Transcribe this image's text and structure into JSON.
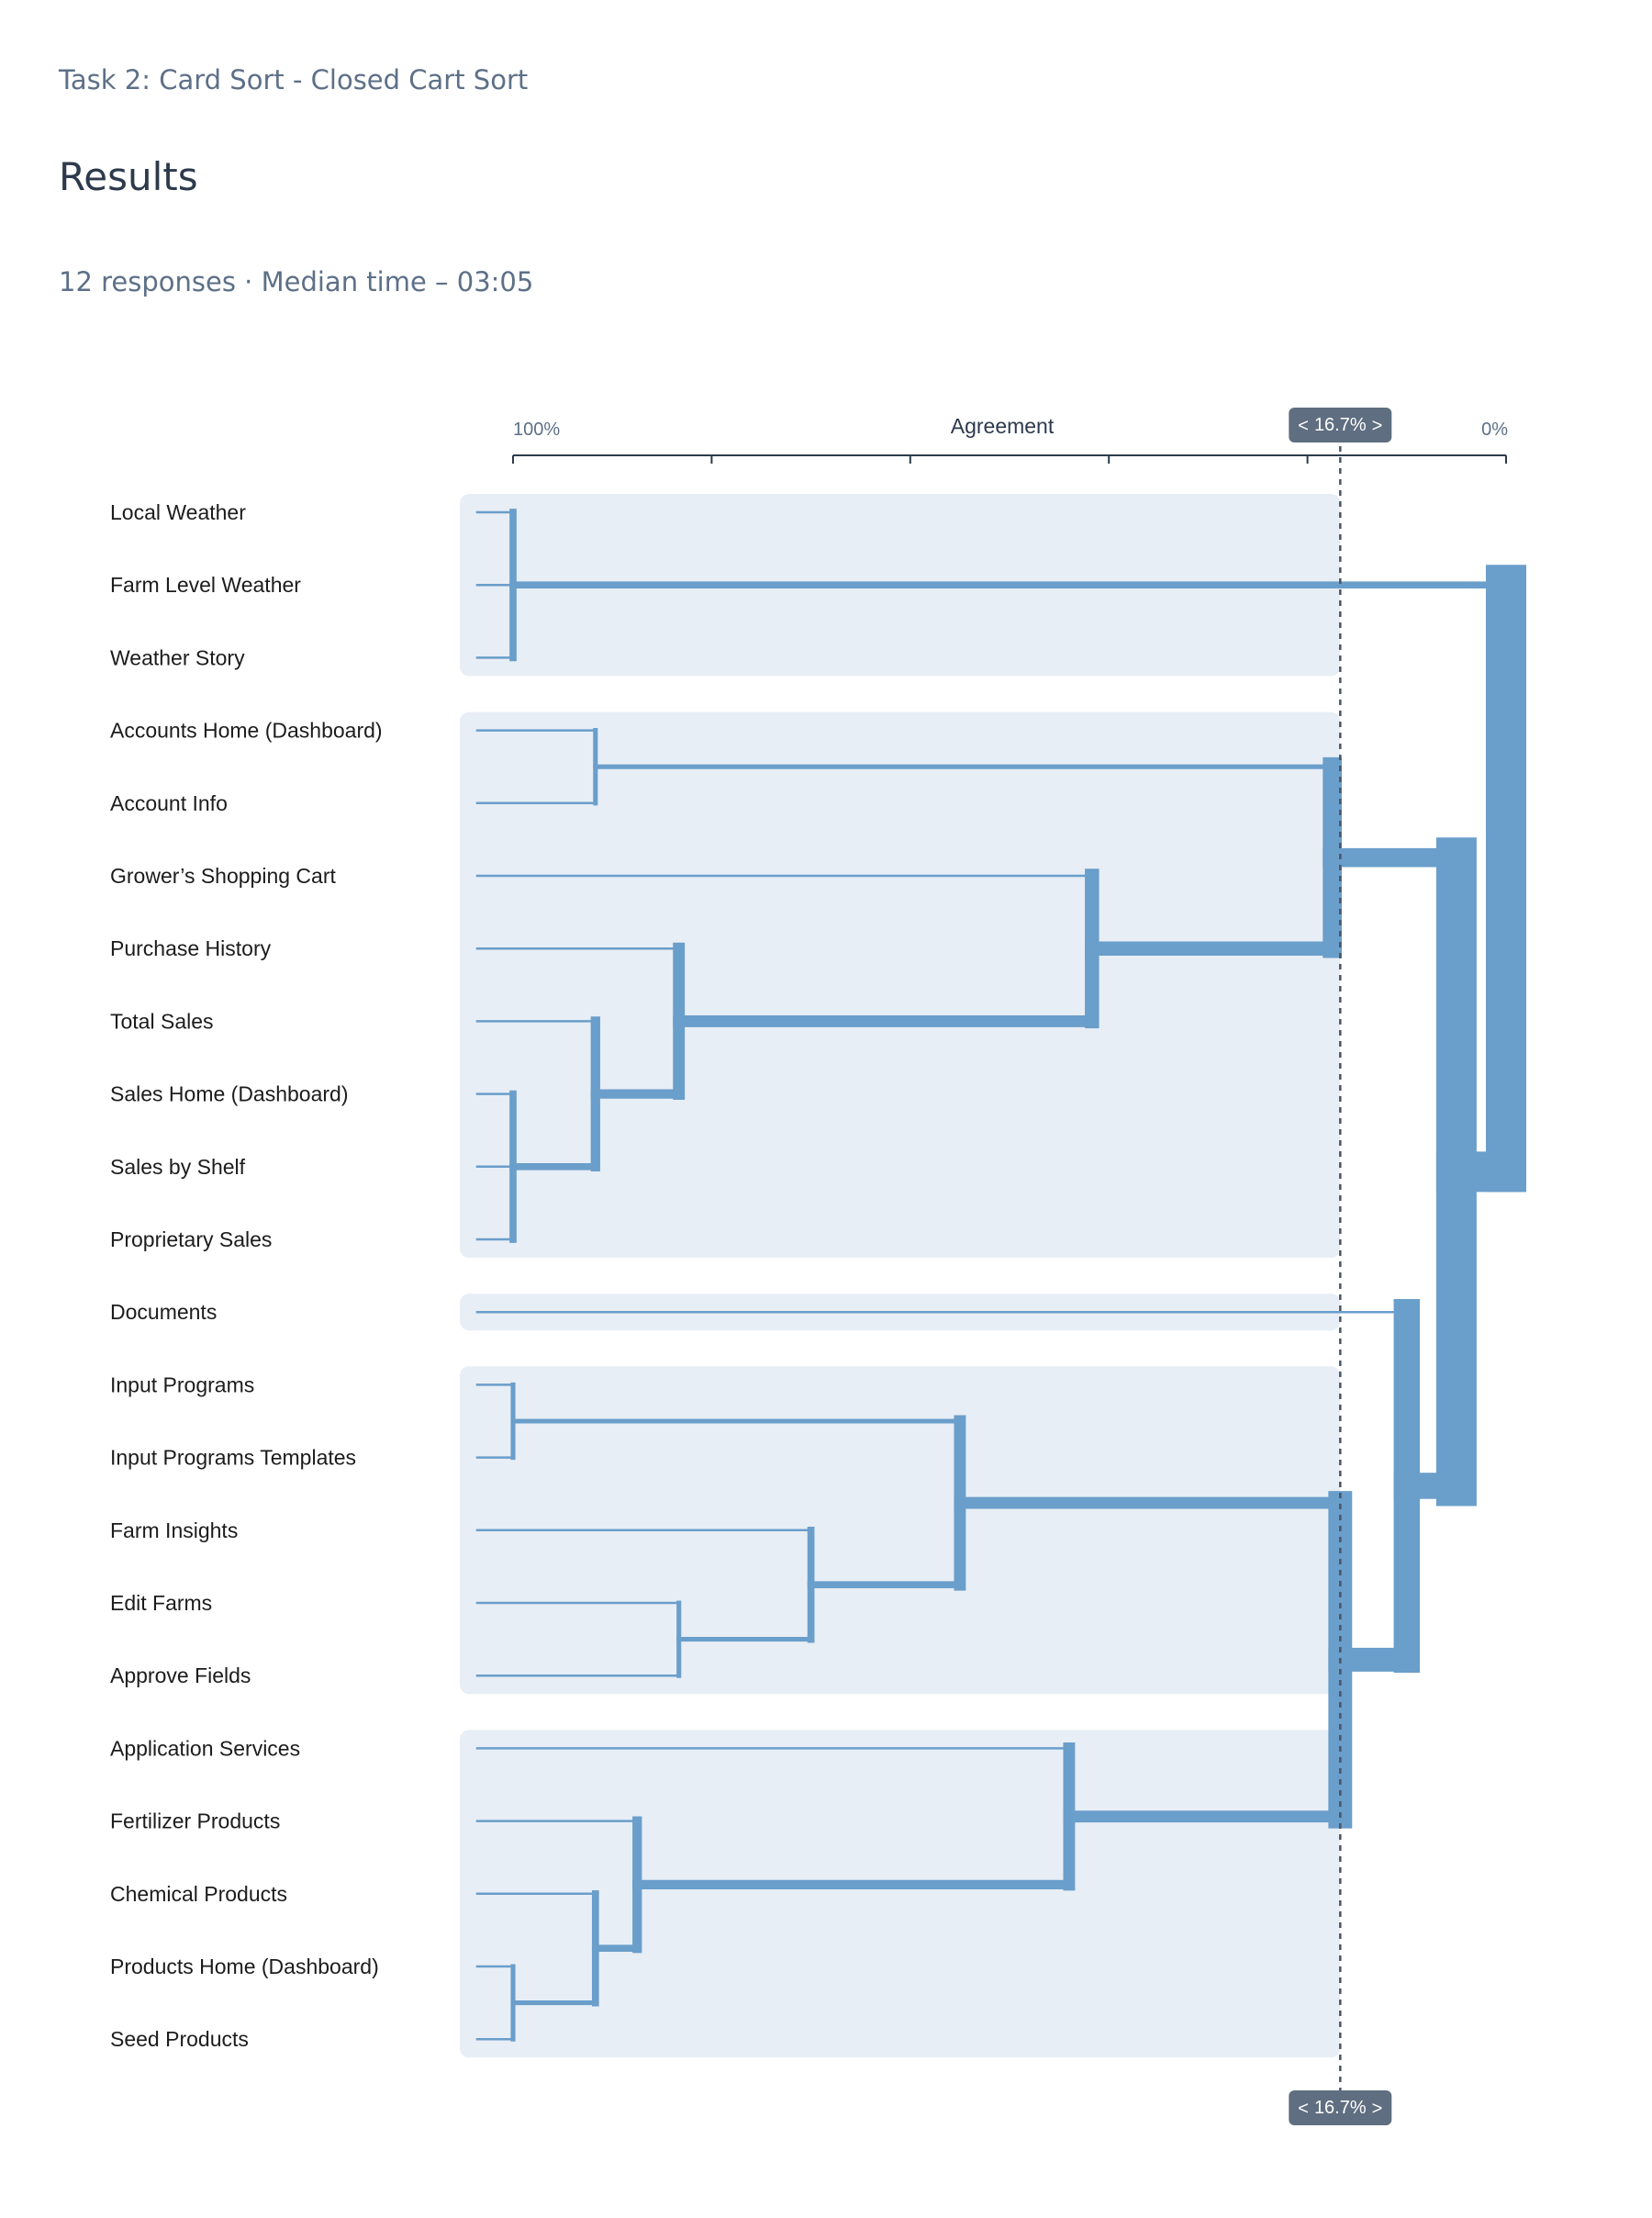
{
  "header": {
    "task": "Task 2: Card Sort - Closed Cart Sort",
    "title": "Results",
    "summary": "12 responses · Median time – 03:05"
  },
  "colors": {
    "link": "#6a9ecb",
    "band": "#e8eef5",
    "badge": "#5f6e80"
  },
  "chart_data": {
    "type": "dendrogram",
    "axis": {
      "title": "Agreement",
      "left_label": "100%",
      "right_label": "0%",
      "domain": [
        100,
        0
      ],
      "ticks": [
        100,
        80,
        60,
        40,
        20,
        0
      ]
    },
    "threshold": {
      "value": 16.7,
      "label": "16.7%",
      "prev_label": "<",
      "next_label": ">"
    },
    "leaves": [
      "Local Weather",
      "Farm Level Weather",
      "Weather Story",
      "Accounts Home (Dashboard)",
      "Account Info",
      "Grower’s Shopping Cart",
      "Purchase History",
      "Total Sales",
      "Sales Home (Dashboard)",
      "Sales by Shelf",
      "Proprietary Sales",
      "Documents",
      "Input Programs",
      "Input Programs Templates",
      "Farm Insights",
      "Edit Farms",
      "Approve Fields",
      "Application Services",
      "Fertilizer Products",
      "Chemical Products",
      "Products Home (Dashboard)",
      "Seed Products"
    ],
    "clusters": [
      [
        0,
        2
      ],
      [
        3,
        10
      ],
      [
        11,
        11
      ],
      [
        12,
        16
      ],
      [
        17,
        21
      ]
    ],
    "merges": [
      {
        "kids": [
          0,
          1,
          2
        ],
        "agreement": 100
      },
      {
        "kids": [
          3,
          4
        ],
        "agreement": 91.7
      },
      {
        "kids": [
          8,
          9,
          10
        ],
        "agreement": 100
      },
      {
        "kids": [
          7,
          "m2"
        ],
        "agreement": 91.7
      },
      {
        "kids": [
          6,
          "m3"
        ],
        "agreement": 83.3
      },
      {
        "kids": [
          5,
          "m4"
        ],
        "agreement": 41.7
      },
      {
        "kids": [
          "m1",
          "m5"
        ],
        "agreement": 17.5
      },
      {
        "kids": [
          12,
          13
        ],
        "agreement": 100
      },
      {
        "kids": [
          15,
          16
        ],
        "agreement": 83.3
      },
      {
        "kids": [
          14,
          "m8"
        ],
        "agreement": 70
      },
      {
        "kids": [
          "m7",
          "m9"
        ],
        "agreement": 55
      },
      {
        "kids": [
          20,
          21
        ],
        "agreement": 100
      },
      {
        "kids": [
          19,
          "m11"
        ],
        "agreement": 91.7
      },
      {
        "kids": [
          18,
          "m12"
        ],
        "agreement": 87.5
      },
      {
        "kids": [
          17,
          "m13"
        ],
        "agreement": 44
      },
      {
        "kids": [
          "m10",
          "m14"
        ],
        "agreement": 16.7
      },
      {
        "kids": [
          11,
          "m15"
        ],
        "agreement": 10
      },
      {
        "kids": [
          "m6",
          "m16"
        ],
        "agreement": 5
      },
      {
        "kids": [
          "m0",
          "m17"
        ],
        "agreement": 0
      }
    ]
  }
}
